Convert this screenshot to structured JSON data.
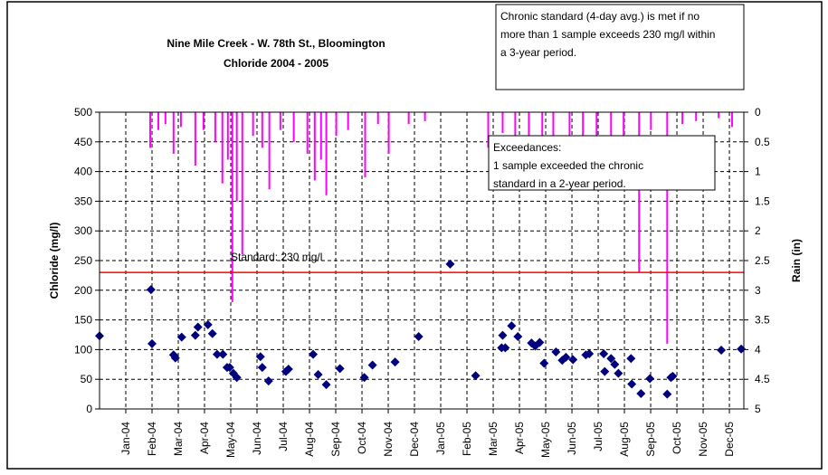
{
  "chart_data": {
    "type": "scatter",
    "title": [
      "Nine Mile Creek - W. 78th St., Bloomington",
      "Chloride 2004 - 2005"
    ],
    "y_label": "Chloride (mg/l)",
    "y2_label": "Rain (in)",
    "xlim": [
      0,
      24.55
    ],
    "xticks": [
      {
        "value": 1,
        "label": "Jan-04"
      },
      {
        "value": 2,
        "label": "Feb-04"
      },
      {
        "value": 3,
        "label": "Mar-04"
      },
      {
        "value": 4,
        "label": "Apr-04"
      },
      {
        "value": 5,
        "label": "May-04"
      },
      {
        "value": 6,
        "label": "Jun-04"
      },
      {
        "value": 7,
        "label": "Jul-04"
      },
      {
        "value": 8,
        "label": "Aug-04"
      },
      {
        "value": 9,
        "label": "Sep-04"
      },
      {
        "value": 10,
        "label": "Oct-04"
      },
      {
        "value": 11,
        "label": "Nov-04"
      },
      {
        "value": 12,
        "label": "Dec-04"
      },
      {
        "value": 13,
        "label": "Jan-05"
      },
      {
        "value": 14,
        "label": "Feb-05"
      },
      {
        "value": 15,
        "label": "Mar-05"
      },
      {
        "value": 16,
        "label": "Apr-05"
      },
      {
        "value": 17,
        "label": "May-05"
      },
      {
        "value": 18,
        "label": "Jun-05"
      },
      {
        "value": 19,
        "label": "Jul-05"
      },
      {
        "value": 20,
        "label": "Aug-05"
      },
      {
        "value": 21,
        "label": "Sep-05"
      },
      {
        "value": 22,
        "label": "Oct-05"
      },
      {
        "value": 23,
        "label": "Nov-05"
      },
      {
        "value": 24,
        "label": "Dec-05"
      }
    ],
    "ylim": [
      0,
      500
    ],
    "yticks": [
      0,
      50,
      100,
      150,
      200,
      250,
      300,
      350,
      400,
      450,
      500
    ],
    "y2lim": [
      5,
      0
    ],
    "y2ticks": [
      0,
      0.5,
      1,
      1.5,
      2,
      2.5,
      3,
      3.5,
      4,
      4.5,
      5
    ],
    "grid": true,
    "series": [
      {
        "kind": "scatter",
        "color": "#00007f",
        "x": [
          0.0,
          1.96,
          2.0,
          2.82,
          2.89,
          3.13,
          3.65,
          3.75,
          4.13,
          4.3,
          4.48,
          4.7,
          4.86,
          4.96,
          5.1,
          5.23,
          6.13,
          6.2,
          6.44,
          7.1,
          7.2,
          8.14,
          8.33,
          8.64,
          9.16,
          10.09,
          10.4,
          11.26,
          12.16,
          13.36,
          14.33,
          15.32,
          15.36,
          15.46,
          15.7,
          15.94,
          16.46,
          16.6,
          16.77,
          16.94,
          17.39,
          17.63,
          17.77,
          18.04,
          18.53,
          18.66,
          19.21,
          19.25,
          19.49,
          19.63,
          19.77,
          20.25,
          20.28,
          20.63,
          20.97,
          21.63,
          21.77,
          21.84,
          23.69,
          24.45
        ],
        "values": [
          123,
          201,
          110,
          91,
          86,
          121,
          124,
          138,
          142,
          127,
          92,
          92,
          70,
          70,
          60,
          53,
          88,
          70,
          47,
          63,
          67,
          92,
          58,
          41,
          68,
          53,
          74,
          79,
          122,
          244,
          56,
          103,
          124,
          103,
          140,
          122,
          111,
          106,
          112,
          77,
          96,
          82,
          87,
          83,
          91,
          93,
          93,
          63,
          85,
          75,
          60,
          85,
          42,
          26,
          51,
          25,
          53,
          55,
          99,
          101
        ]
      },
      {
        "kind": "bar",
        "axis": "y2",
        "color": "#ff00ff",
        "x": [
          1.93,
          2.24,
          2.51,
          2.82,
          3.1,
          3.65,
          3.96,
          4.41,
          4.68,
          4.89,
          5.06,
          5.23,
          5.44,
          5.85,
          6.2,
          6.47,
          6.89,
          7.4,
          7.92,
          8.2,
          8.44,
          8.64,
          9.02,
          9.47,
          10.12,
          10.61,
          11.02,
          11.78,
          12.4,
          14.81,
          15.36,
          15.84,
          16.36,
          16.87,
          17.29,
          17.91,
          18.42,
          18.94,
          19.49,
          19.97,
          20.56,
          21.01,
          21.63,
          22.21,
          22.73,
          23.59,
          24.1
        ],
        "values": [
          0.6,
          0.3,
          0.2,
          0.7,
          0.25,
          0.9,
          0.3,
          0.5,
          1.2,
          0.8,
          3.2,
          1.5,
          2.4,
          0.4,
          0.6,
          1.3,
          0.3,
          0.5,
          0.7,
          1.15,
          0.8,
          1.4,
          0.4,
          0.3,
          1.1,
          0.2,
          0.7,
          0.2,
          0.15,
          0.6,
          0.35,
          0.5,
          0.4,
          1.15,
          0.5,
          0.8,
          0.4,
          1.0,
          0.5,
          0.8,
          2.7,
          0.3,
          3.9,
          0.2,
          0.15,
          0.1,
          0.25
        ]
      }
    ],
    "reference_line": {
      "value": 230,
      "label": "Standard: 230 mg/l",
      "color": "#ff0000"
    },
    "annotations": [
      [
        "Chronic standard (4-day avg.) is met if no",
        "more than 1 sample exceeds 230 mg/l within",
        "a 3-year period."
      ],
      [
        "Exceedances:",
        "1 sample exceeded the chronic",
        "standard in a 2-year period."
      ]
    ]
  }
}
